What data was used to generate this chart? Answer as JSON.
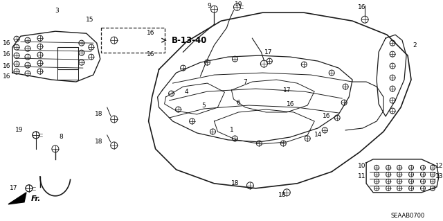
{
  "bg_color": "#ffffff",
  "fig_width": 6.4,
  "fig_height": 3.19,
  "dpi": 100,
  "diagram_id": "SEAAB0700",
  "reference_label": "B-13-40",
  "line_color": "#1a1a1a",
  "label_fontsize": 6.5,
  "ref_fontsize": 7.5,
  "id_fontsize": 6.0
}
